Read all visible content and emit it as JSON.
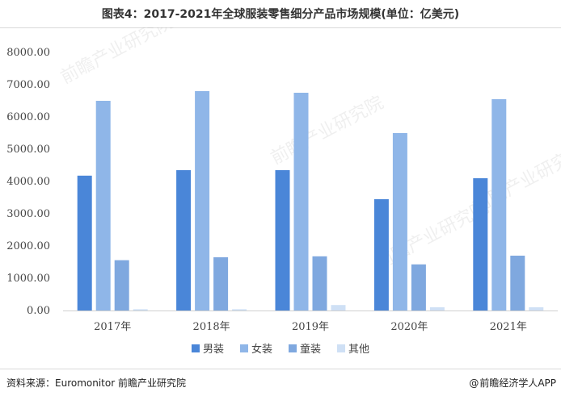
{
  "title": "图表4：2017-2021年全球服装零售细分产品市场规模(单位：亿美元)",
  "source": "资料来源：Euromonitor 前瞻产业研究院",
  "brand": {
    "icon": "weibo-icon",
    "text": "前瞻经济学人APP"
  },
  "watermark": "前瞻产业研究院",
  "chart_data": {
    "type": "bar",
    "title": "图表4：2017-2021年全球服装零售细分产品市场规模(单位：亿美元)",
    "categories": [
      "2017年",
      "2018年",
      "2019年",
      "2020年",
      "2021年"
    ],
    "series": [
      {
        "name": "男装",
        "color": "#4a86d8",
        "values": [
          4180,
          4350,
          4350,
          3450,
          4100
        ]
      },
      {
        "name": "女装",
        "color": "#8fb6e8",
        "values": [
          6500,
          6800,
          6750,
          5500,
          6550
        ]
      },
      {
        "name": "童装",
        "color": "#7fa8df",
        "values": [
          1560,
          1650,
          1680,
          1430,
          1700
        ]
      },
      {
        "name": "其他",
        "color": "#cfe0f5",
        "values": [
          40,
          40,
          170,
          100,
          100
        ]
      }
    ],
    "yticks": [
      "0.00",
      "1000.00",
      "2000.00",
      "3000.00",
      "4000.00",
      "5000.00",
      "6000.00",
      "7000.00",
      "8000.00"
    ],
    "ylim": [
      0,
      8000
    ],
    "grid": false,
    "legend": "bottom"
  }
}
